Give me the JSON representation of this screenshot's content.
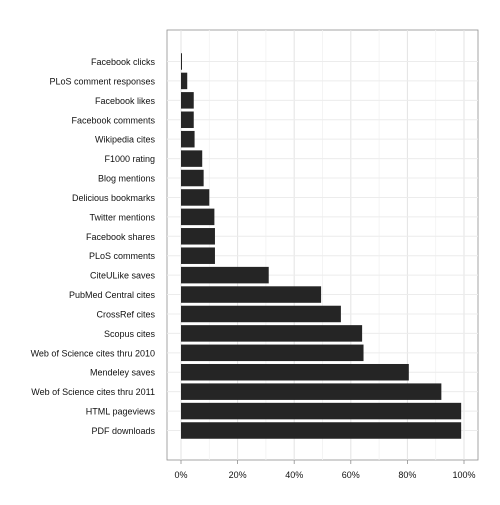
{
  "chart_data": {
    "type": "bar",
    "orientation": "horizontal",
    "title": "",
    "xlabel": "",
    "ylabel": "",
    "xlim": [
      0,
      1
    ],
    "x_ticks": [
      0,
      0.2,
      0.4,
      0.6,
      0.8,
      1.0
    ],
    "x_tick_labels": [
      "0%",
      "20%",
      "40%",
      "60%",
      "80%",
      "100%"
    ],
    "grid": true,
    "legend": "none",
    "bar_color": "#252525",
    "categories": [
      "PDF downloads",
      "HTML pageviews",
      "Web of Science cites thru 2011",
      "Mendeley saves",
      "Web of Science cites thru 2010",
      "Scopus cites",
      "CrossRef cites",
      "PubMed Central cites",
      "CiteULike saves",
      "PLoS comments",
      "Facebook shares",
      "Twitter mentions",
      "Delicious bookmarks",
      "Blog mentions",
      "F1000 rating",
      "Wikipedia cites",
      "Facebook comments",
      "Facebook likes",
      "PLoS comment responses",
      "Facebook clicks"
    ],
    "values": [
      0.99,
      0.99,
      0.92,
      0.805,
      0.645,
      0.64,
      0.565,
      0.495,
      0.31,
      0.12,
      0.12,
      0.118,
      0.1,
      0.08,
      0.075,
      0.048,
      0.045,
      0.045,
      0.022,
      0.003
    ]
  }
}
